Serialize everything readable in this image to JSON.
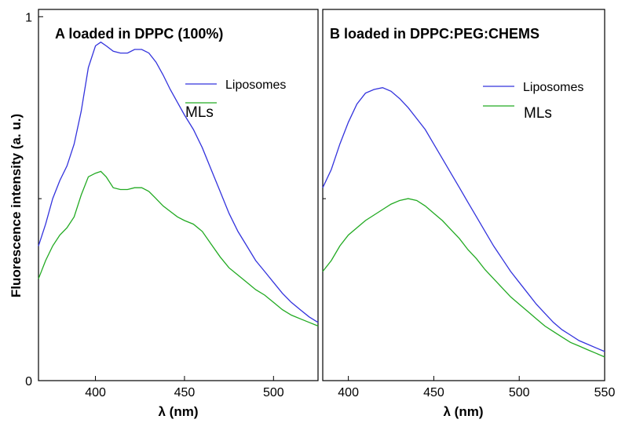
{
  "chart_data": [
    {
      "type": "line",
      "panel_label": "A",
      "title": "A loaded in DPPC (100%)",
      "xlabel": "λ (nm)",
      "ylabel": "Fluorescence intensity (a. u.)",
      "xlim": [
        368,
        525
      ],
      "ylim": [
        0,
        1.02
      ],
      "x_ticks": [
        400,
        450,
        500
      ],
      "y_ticks": [
        0,
        1
      ],
      "y_tick_labels": [
        "0",
        "1"
      ],
      "legend_position": "top-right",
      "series": [
        {
          "name": "Liposomes",
          "color": "#3333dd",
          "x": [
            368,
            372,
            376,
            380,
            384,
            388,
            392,
            396,
            400,
            403,
            406,
            410,
            414,
            418,
            422,
            426,
            430,
            434,
            438,
            442,
            446,
            450,
            455,
            460,
            465,
            470,
            475,
            480,
            485,
            490,
            495,
            500,
            505,
            510,
            515,
            520,
            525
          ],
          "y": [
            0.37,
            0.43,
            0.5,
            0.55,
            0.59,
            0.65,
            0.74,
            0.86,
            0.92,
            0.93,
            0.92,
            0.905,
            0.9,
            0.9,
            0.91,
            0.91,
            0.9,
            0.875,
            0.84,
            0.8,
            0.765,
            0.73,
            0.69,
            0.64,
            0.58,
            0.52,
            0.46,
            0.41,
            0.37,
            0.33,
            0.3,
            0.27,
            0.24,
            0.215,
            0.195,
            0.175,
            0.16
          ]
        },
        {
          "name": "MLs",
          "color": "#22aa22",
          "x": [
            368,
            372,
            376,
            380,
            384,
            388,
            392,
            396,
            400,
            403,
            406,
            410,
            414,
            418,
            422,
            426,
            430,
            434,
            438,
            442,
            446,
            450,
            455,
            460,
            465,
            470,
            475,
            480,
            485,
            490,
            495,
            500,
            505,
            510,
            515,
            520,
            525
          ],
          "y": [
            0.28,
            0.33,
            0.37,
            0.4,
            0.42,
            0.45,
            0.51,
            0.56,
            0.57,
            0.575,
            0.56,
            0.53,
            0.525,
            0.525,
            0.53,
            0.53,
            0.52,
            0.5,
            0.48,
            0.465,
            0.45,
            0.44,
            0.43,
            0.41,
            0.375,
            0.34,
            0.31,
            0.29,
            0.27,
            0.25,
            0.235,
            0.215,
            0.195,
            0.18,
            0.17,
            0.16,
            0.15
          ]
        }
      ]
    },
    {
      "type": "line",
      "panel_label": "B",
      "title": "B loaded in DPPC:PEG:CHEMS",
      "xlabel": "λ (nm)",
      "ylabel": "",
      "xlim": [
        385,
        550
      ],
      "ylim": [
        0,
        1.02
      ],
      "x_ticks": [
        400,
        450,
        500,
        550
      ],
      "y_ticks": [],
      "y_tick_labels": [],
      "legend_position": "top-right",
      "series": [
        {
          "name": "Liposomes",
          "color": "#3333dd",
          "x": [
            385,
            390,
            395,
            400,
            405,
            410,
            415,
            420,
            425,
            430,
            435,
            440,
            445,
            450,
            455,
            460,
            465,
            470,
            475,
            480,
            485,
            490,
            495,
            500,
            505,
            510,
            515,
            520,
            525,
            530,
            535,
            540,
            545,
            550
          ],
          "y": [
            0.53,
            0.58,
            0.65,
            0.71,
            0.76,
            0.79,
            0.8,
            0.805,
            0.795,
            0.775,
            0.75,
            0.72,
            0.69,
            0.65,
            0.61,
            0.57,
            0.53,
            0.49,
            0.45,
            0.41,
            0.37,
            0.335,
            0.3,
            0.27,
            0.24,
            0.21,
            0.185,
            0.16,
            0.14,
            0.125,
            0.11,
            0.1,
            0.09,
            0.08
          ]
        },
        {
          "name": "MLs",
          "color": "#22aa22",
          "x": [
            385,
            390,
            395,
            400,
            405,
            410,
            415,
            420,
            425,
            430,
            435,
            440,
            445,
            450,
            455,
            460,
            465,
            470,
            475,
            480,
            485,
            490,
            495,
            500,
            505,
            510,
            515,
            520,
            525,
            530,
            535,
            540,
            545,
            550
          ],
          "y": [
            0.3,
            0.33,
            0.37,
            0.4,
            0.42,
            0.44,
            0.455,
            0.47,
            0.485,
            0.495,
            0.5,
            0.495,
            0.48,
            0.46,
            0.44,
            0.415,
            0.39,
            0.36,
            0.335,
            0.305,
            0.28,
            0.255,
            0.23,
            0.21,
            0.19,
            0.17,
            0.15,
            0.135,
            0.12,
            0.105,
            0.095,
            0.085,
            0.075,
            0.065
          ]
        }
      ]
    }
  ]
}
